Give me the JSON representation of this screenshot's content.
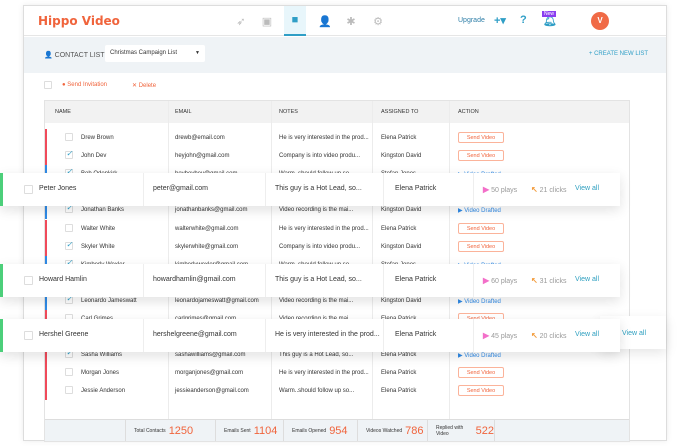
{
  "header": {
    "logo": "Hippo Video",
    "nav_icons": [
      "rocket-icon",
      "page-icon",
      "video-icon",
      "users-icon",
      "puzzle-icon",
      "gear-icon"
    ],
    "active_nav": "video-icon",
    "upgrade": "Upgrade",
    "new_badge": "New",
    "avatar": "V"
  },
  "contact_list": {
    "label": "CONTACT LIST",
    "selected": "Christmas Campaign List",
    "create_new": "CREATE NEW LIST"
  },
  "actions": {
    "send_invitation": "Send Invitation",
    "delete": "Delete"
  },
  "table": {
    "headers": [
      "NAME",
      "EMAIL",
      "NOTES",
      "ASSIGNED TO",
      "ACTION"
    ],
    "rows": [
      {
        "name": "Drew Brown",
        "email": "drewb@email.com",
        "notes": "He is very interested in the prod...",
        "assigned": "Elena Patrick",
        "action": "Send Video",
        "checked": false,
        "color": "#f04a5a"
      },
      {
        "name": "John Dev",
        "email": "heyjohn@gmail.com",
        "notes": "Company is into video produ...",
        "assigned": "Kingston David",
        "action": "Send Video",
        "checked": true,
        "color": "#f04a5a"
      },
      {
        "name": "Bob Odenkirk",
        "email": "heyheyhey@gmail.com",
        "notes": "Warm, should follow up so...",
        "assigned": "Stefan Jones",
        "action": "Video Drafted",
        "checked": true,
        "color": "#2f8ae6"
      },
      null,
      {
        "name": "Jonathan Banks",
        "email": "jonathanbanks@gmail.com",
        "notes": "Video recording is the mai...",
        "assigned": "Kingston David",
        "action": "Video Drafted",
        "checked": true,
        "color": "#2f8ae6"
      },
      {
        "name": "Walter White",
        "email": "walterwhite@gmail.com",
        "notes": "He is very interested in the prod...",
        "assigned": "Elena Patrick",
        "action": "Send Video",
        "checked": false,
        "color": "#f04a5a"
      },
      {
        "name": "Skyler White",
        "email": "skylerwhite@gmail.com",
        "notes": "Company is into video produ...",
        "assigned": "Kingston David",
        "action": "Send Video",
        "checked": true,
        "color": "#f04a5a"
      },
      {
        "name": "Kimberly Wexler",
        "email": "kimberlywexler@gmail.com",
        "notes": "Warm, should follow up so...",
        "assigned": "Stefan Jones",
        "action": "Video Drafted",
        "checked": true,
        "color": "#2f8ae6"
      },
      null,
      {
        "name": "Leonardo Jameswatt",
        "email": "leonardojameswatt@gmail.com",
        "notes": "Video recording is the mai...",
        "assigned": "Kingston David",
        "action": "Video Drafted",
        "checked": true,
        "color": "#2f8ae6"
      },
      {
        "name": "Carl Grimes",
        "email": "carlgrimes@gmail.com",
        "notes": "Video recording is the mai...",
        "assigned": "Elena Patrick",
        "action": "Send Video",
        "checked": false,
        "color": "#f04a5a"
      },
      null,
      {
        "name": "Sasha Williams",
        "email": "sashawilliams@gmail.com",
        "notes": "This guy is a Hot Lead, so...",
        "assigned": "Elena Patrick",
        "action": "Video Drafted",
        "checked": true,
        "color": "#f04a5a"
      },
      {
        "name": "Morgan Jones",
        "email": "morganjones@gmail.com",
        "notes": "He is very interested in the prod...",
        "assigned": "Elena Patrick",
        "action": "Send Video",
        "checked": false,
        "color": "#f04a5a"
      },
      {
        "name": "Jessie Anderson",
        "email": "jessieanderson@gmail.com",
        "notes": "Warm..should follow up so...",
        "assigned": "Elena Patrick",
        "action": "Send Video",
        "checked": false,
        "color": "#f04a5a"
      }
    ]
  },
  "highlights": [
    {
      "name": "Peter Jones",
      "email": "peter@gmail.com",
      "notes": "This guy is a Hot Lead, so...",
      "assigned": "Elena Patrick",
      "plays": "50 plays",
      "clicks": "21 clicks",
      "view_all": "View all"
    },
    {
      "name": "Howard Hamlin",
      "email": "howardhamlin@gmail.com",
      "notes": "This guy is a Hot Lead, so...",
      "assigned": "Elena Patrick",
      "plays": "60 plays",
      "clicks": "31 clicks",
      "view_all": "View all"
    },
    {
      "name": "Hershel Greene",
      "email": "hershelgreene@gmail.com",
      "notes": "He is very interested in the prod...",
      "assigned": "Elena Patrick",
      "plays": "45 plays",
      "clicks": "20 clicks",
      "view_all": "View all"
    }
  ],
  "ghost_view_all": "View all",
  "footer": {
    "stats": [
      {
        "label": "Total Contacts",
        "value": "1250"
      },
      {
        "label": "Emails Sent",
        "value": "1104"
      },
      {
        "label": "Emails Opened",
        "value": "954"
      },
      {
        "label": "Videos Watched",
        "value": "786"
      },
      {
        "label": "Replied with Video",
        "value": "522"
      }
    ]
  }
}
